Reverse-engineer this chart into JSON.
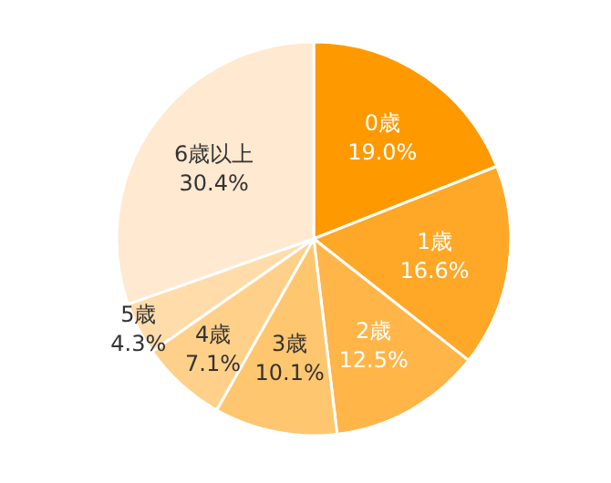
{
  "chart_data": {
    "type": "pie",
    "categories": [
      "0歳",
      "1歳",
      "2歳",
      "3歳",
      "4歳",
      "5歳",
      "6歳以上"
    ],
    "values": [
      19.0,
      16.6,
      12.5,
      10.1,
      7.1,
      4.3,
      30.4
    ],
    "value_labels": [
      "19.0%",
      "16.6%",
      "12.5%",
      "10.1%",
      "7.1%",
      "4.3%",
      "30.4%"
    ],
    "colors": [
      "#ff9900",
      "#ffa726",
      "#ffb547",
      "#ffc670",
      "#ffd08a",
      "#ffdcaa",
      "#ffe9d0"
    ]
  }
}
